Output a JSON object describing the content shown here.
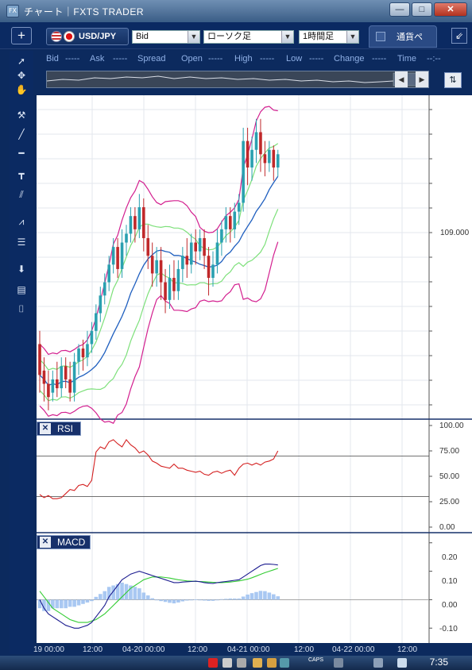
{
  "window": {
    "title": "チャート｜FXTS TRADER",
    "app_icon": "FX",
    "buttons": [
      "—",
      "□",
      "✕"
    ]
  },
  "toolbar": {
    "add_label": "+",
    "pair": "USD/JPY",
    "price_type": "Bid",
    "chart_type": "ローソク足",
    "timeframe": "1時間足",
    "tab_label": "通貨ペ",
    "popout_label": "⇙"
  },
  "quotes": [
    {
      "label": "Bid",
      "value": "-----"
    },
    {
      "label": "Ask",
      "value": "-----"
    },
    {
      "label": "Spread",
      "value": ""
    },
    {
      "label": "Open",
      "value": "-----"
    },
    {
      "label": "High",
      "value": "-----"
    },
    {
      "label": "Low",
      "value": "-----"
    },
    {
      "label": "Change",
      "value": "-----"
    },
    {
      "label": "Time",
      "value": "--:--"
    }
  ],
  "sidebar": [
    "cursor-icon",
    "crosshair-icon",
    "hand-icon",
    "hammer-icon",
    "trendline-icon",
    "horizontal-line-icon",
    "vertical-line-icon",
    "parallel-lines-icon",
    "fibonacci-fan-icon",
    "fibonacci-lines-icon",
    "download-icon",
    "list-icon",
    "camera-icon"
  ],
  "panes": {
    "rsi": {
      "label": "RSI",
      "ticks": [
        "100.00",
        "75.00",
        "50.00",
        "25.00",
        "0.00"
      ]
    },
    "macd": {
      "label": "MACD",
      "ticks": [
        "0.20",
        "0.10",
        "0.00",
        "-0.10"
      ]
    }
  },
  "price_axis": {
    "label": "109.000"
  },
  "time_axis": [
    "19 00:00",
    "12:00",
    "04-20 00:00",
    "12:00",
    "04-21 00:00",
    "12:00",
    "04-22 00:00",
    "12:00"
  ],
  "taskbar": {
    "time": "7:35",
    "caps": "CAPS"
  },
  "colors": {
    "bull": "#2aa0b0",
    "bear": "#c0282a",
    "bb_outer": "#d31f8f",
    "bb_inner": "#7de07a",
    "ma": "#1f5fbf",
    "rsi": "#d42020",
    "macd": "#1b1b8f",
    "signal": "#33cc33",
    "histogram": "#a9c8f2"
  },
  "chart_data": [
    {
      "type": "candlestick",
      "title": "",
      "pair": "USD/JPY",
      "timeframe": "1時間足",
      "y_label_visible": "109.000",
      "x_tick_labels": [
        "19 00:00",
        "12:00",
        "04-20 00:00",
        "12:00",
        "04-21 00:00",
        "12:00",
        "04-22 00:00",
        "12:00"
      ],
      "ylim": [
        108.62,
        109.35
      ],
      "overlays": [
        "Bollinger Bands (±1σ, ±2σ)",
        "Moving Average"
      ],
      "candles": [
        [
          108.79,
          108.72,
          108.82,
          108.68
        ],
        [
          108.73,
          108.7,
          108.76,
          108.66
        ],
        [
          108.7,
          108.67,
          108.73,
          108.64
        ],
        [
          108.68,
          108.71,
          108.73,
          108.66
        ],
        [
          108.71,
          108.69,
          108.75,
          108.67
        ],
        [
          108.69,
          108.74,
          108.76,
          108.67
        ],
        [
          108.74,
          108.71,
          108.76,
          108.69
        ],
        [
          108.71,
          108.68,
          108.75,
          108.66
        ],
        [
          108.68,
          108.75,
          108.77,
          108.66
        ],
        [
          108.75,
          108.78,
          108.79,
          108.72
        ],
        [
          108.78,
          108.76,
          108.8,
          108.73
        ],
        [
          108.76,
          108.79,
          108.82,
          108.74
        ],
        [
          108.79,
          108.82,
          108.84,
          108.77
        ],
        [
          108.82,
          108.86,
          108.88,
          108.8
        ],
        [
          108.86,
          108.9,
          108.92,
          108.84
        ],
        [
          108.9,
          108.93,
          108.95,
          108.88
        ],
        [
          108.93,
          108.97,
          108.99,
          108.91
        ],
        [
          108.97,
          109.01,
          109.03,
          108.95
        ],
        [
          109.01,
          108.96,
          109.03,
          108.94
        ],
        [
          108.96,
          109.02,
          109.05,
          108.94
        ],
        [
          109.02,
          109.04,
          109.06,
          108.99
        ],
        [
          109.04,
          109.08,
          109.1,
          109.02
        ],
        [
          109.08,
          109.05,
          109.1,
          109.02
        ],
        [
          109.05,
          109.1,
          109.13,
          109.03
        ],
        [
          109.1,
          109.03,
          109.12,
          109.0
        ],
        [
          109.03,
          108.99,
          109.06,
          108.96
        ],
        [
          108.99,
          108.95,
          109.02,
          108.92
        ],
        [
          108.95,
          108.98,
          109.01,
          108.92
        ],
        [
          108.98,
          108.93,
          109.01,
          108.89
        ],
        [
          108.93,
          108.89,
          108.96,
          108.86
        ],
        [
          108.89,
          108.94,
          108.97,
          108.87
        ],
        [
          108.94,
          108.91,
          108.98,
          108.89
        ],
        [
          108.91,
          108.96,
          108.98,
          108.89
        ],
        [
          108.96,
          108.99,
          109.01,
          108.93
        ],
        [
          108.99,
          108.97,
          109.03,
          108.94
        ],
        [
          108.97,
          109.02,
          109.04,
          108.95
        ],
        [
          109.02,
          109.0,
          109.05,
          108.97
        ],
        [
          109.0,
          109.03,
          109.05,
          108.98
        ],
        [
          109.03,
          108.99,
          109.05,
          108.96
        ],
        [
          108.99,
          108.94,
          109.01,
          108.9
        ],
        [
          108.94,
          108.97,
          109.0,
          108.92
        ],
        [
          108.97,
          109.02,
          109.05,
          108.95
        ],
        [
          109.02,
          109.05,
          109.07,
          108.99
        ],
        [
          109.05,
          109.08,
          109.1,
          109.02
        ],
        [
          109.08,
          109.05,
          109.1,
          109.02
        ],
        [
          109.05,
          109.09,
          109.11,
          109.03
        ],
        [
          109.09,
          109.11,
          109.13,
          109.06
        ],
        [
          109.11,
          109.25,
          109.28,
          109.09
        ],
        [
          109.25,
          109.19,
          109.28,
          109.15
        ],
        [
          109.19,
          109.23,
          109.26,
          109.16
        ],
        [
          109.23,
          109.27,
          109.3,
          109.2
        ],
        [
          109.27,
          109.22,
          109.3,
          109.18
        ],
        [
          109.22,
          109.2,
          109.25,
          109.17
        ],
        [
          109.2,
          109.23,
          109.25,
          109.18
        ],
        [
          109.23,
          109.19,
          109.24,
          109.16
        ],
        [
          109.19,
          109.22,
          109.23,
          109.17
        ]
      ]
    },
    {
      "type": "line",
      "title": "RSI",
      "ylim": [
        0,
        100
      ],
      "y_ticks": [
        0,
        25,
        50,
        75,
        100
      ],
      "levels": [
        30,
        70
      ],
      "series": [
        {
          "name": "RSI",
          "values": [
            32,
            29,
            31,
            28,
            28,
            29,
            33,
            37,
            36,
            41,
            42,
            40,
            46,
            74,
            79,
            77,
            84,
            86,
            82,
            79,
            86,
            81,
            78,
            73,
            75,
            71,
            65,
            63,
            60,
            59,
            58,
            62,
            58,
            58,
            56,
            55,
            54,
            55,
            52,
            51,
            54,
            55,
            53,
            55,
            56,
            51,
            58,
            62,
            63,
            61,
            63,
            61,
            64,
            65,
            67,
            75
          ]
        }
      ]
    },
    {
      "type": "bar",
      "title": "MACD",
      "ylim": [
        -0.13,
        0.23
      ],
      "y_ticks": [
        -0.1,
        0.0,
        0.1,
        0.2
      ],
      "series": [
        {
          "name": "MACD",
          "values": [
            -0.0,
            -0.03,
            -0.05,
            -0.06,
            -0.07,
            -0.08,
            -0.09,
            -0.095,
            -0.1,
            -0.1,
            -0.095,
            -0.09,
            -0.08,
            -0.06,
            -0.04,
            -0.02,
            0.01,
            0.03,
            0.05,
            0.07,
            0.08,
            0.09,
            0.095,
            0.1,
            0.095,
            0.09,
            0.085,
            0.08,
            0.075,
            0.07,
            0.065,
            0.06,
            0.06,
            0.062,
            0.063,
            0.064,
            0.065,
            0.063,
            0.06,
            0.058,
            0.057,
            0.06,
            0.062,
            0.064,
            0.066,
            0.068,
            0.07,
            0.08,
            0.09,
            0.1,
            0.11,
            0.12,
            0.125,
            0.125,
            0.124,
            0.122
          ]
        },
        {
          "name": "Signal",
          "values": [
            0.03,
            0.01,
            -0.01,
            -0.03,
            -0.04,
            -0.05,
            -0.06,
            -0.07,
            -0.075,
            -0.08,
            -0.08,
            -0.08,
            -0.075,
            -0.07,
            -0.06,
            -0.05,
            -0.035,
            -0.02,
            -0.005,
            0.01,
            0.025,
            0.04,
            0.05,
            0.06,
            0.07,
            0.075,
            0.08,
            0.08,
            0.08,
            0.078,
            0.076,
            0.073,
            0.07,
            0.068,
            0.066,
            0.065,
            0.064,
            0.064,
            0.063,
            0.062,
            0.061,
            0.06,
            0.06,
            0.061,
            0.062,
            0.064,
            0.066,
            0.069,
            0.072,
            0.077,
            0.083,
            0.089,
            0.095,
            0.1,
            0.105,
            0.11
          ]
        },
        {
          "name": "Histogram",
          "values": [
            -0.03,
            -0.04,
            -0.04,
            -0.03,
            -0.03,
            -0.03,
            -0.03,
            -0.025,
            -0.025,
            -0.02,
            -0.015,
            -0.01,
            -0.005,
            0.01,
            0.02,
            0.03,
            0.045,
            0.05,
            0.055,
            0.06,
            0.055,
            0.05,
            0.045,
            0.04,
            0.025,
            0.015,
            0.005,
            0.0,
            -0.005,
            -0.008,
            -0.011,
            -0.013,
            -0.01,
            -0.006,
            -0.003,
            -0.001,
            0.001,
            -0.001,
            -0.003,
            -0.004,
            -0.004,
            0.0,
            0.002,
            0.003,
            0.004,
            0.004,
            0.004,
            0.011,
            0.018,
            0.023,
            0.027,
            0.031,
            0.03,
            0.025,
            0.019,
            0.012
          ]
        }
      ]
    }
  ]
}
